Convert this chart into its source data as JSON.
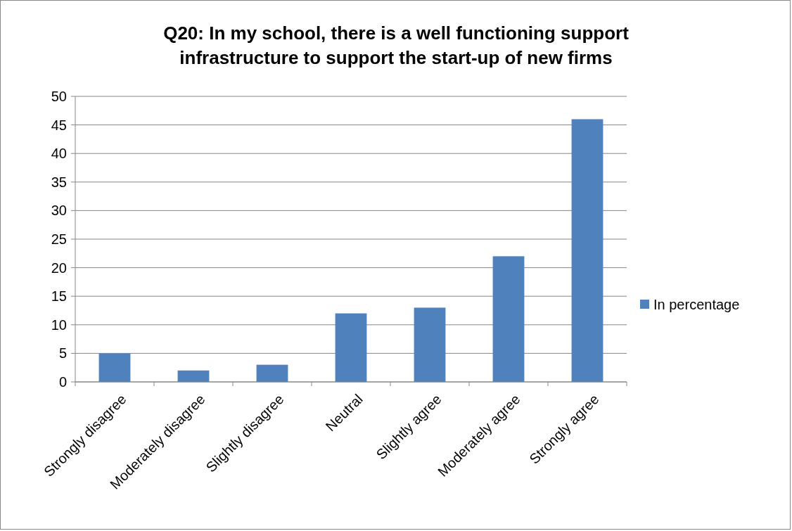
{
  "chart_data": {
    "type": "bar",
    "title": "Q20: In my school, there is a well functioning support infrastructure to support the start-up of new firms",
    "categories": [
      "Strongly disagree",
      "Moderately disagree",
      "Slightly disagree",
      "Neutral",
      "Slightly agree",
      "Moderately agree",
      "Strongly agree"
    ],
    "series": [
      {
        "name": "In percentage",
        "color": "#4f81bd",
        "values": [
          5,
          2,
          3,
          12,
          13,
          22,
          46
        ]
      }
    ],
    "ylim": [
      0,
      50
    ],
    "yticks": [
      0,
      5,
      10,
      15,
      20,
      25,
      30,
      35,
      40,
      45,
      50
    ],
    "grid": "y",
    "legend": "right"
  }
}
